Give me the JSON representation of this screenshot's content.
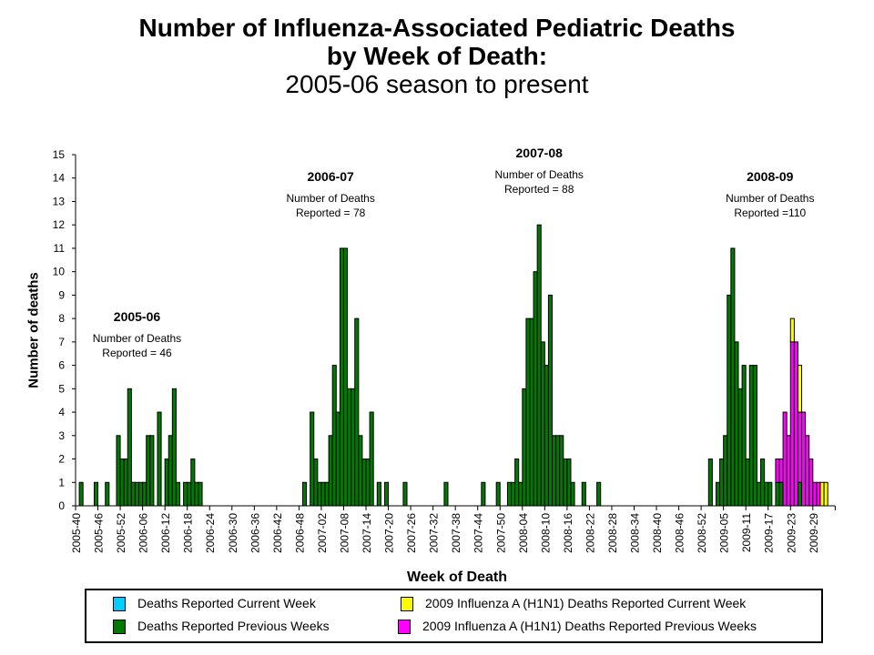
{
  "chart_data": {
    "type": "bar",
    "stacked": true,
    "title": [
      "Number of Influenza-Associated Pediatric Deaths",
      "by Week of Death:",
      "2005-06 season to present"
    ],
    "xlabel": "Week of Death",
    "ylabel": "Number of deaths",
    "ylim": [
      0,
      15
    ],
    "yticks": [
      0,
      1,
      2,
      3,
      4,
      5,
      6,
      7,
      8,
      9,
      10,
      11,
      12,
      13,
      14,
      15
    ],
    "grid": false,
    "x_start_week": "2005-40",
    "x_week_count": 204,
    "x_tick_every_weeks": 6,
    "xtick_labels": [
      "2005-40",
      "2005-46",
      "2005-52",
      "2006-06",
      "2006-12",
      "2006-18",
      "2006-24",
      "2006-30",
      "2006-36",
      "2006-42",
      "2006-48",
      "2007-02",
      "2007-08",
      "2007-14",
      "2007-20",
      "2007-26",
      "2007-32",
      "2007-38",
      "2007-44",
      "2007-50",
      "2008-04",
      "2008-10",
      "2008-16",
      "2008-22",
      "2008-28",
      "2008-34",
      "2008-40",
      "2008-46",
      "2008-52",
      "2009-05",
      "2009-11",
      "2009-17",
      "2009-23",
      "2009-29"
    ],
    "series": [
      {
        "name": "Deaths Reported Current Week",
        "color": "#00ccff",
        "values": []
      },
      {
        "name": "Deaths Reported Previous Weeks",
        "color": "#007a00",
        "values": [
          {
            "week": "2005-41",
            "value": 1
          },
          {
            "week": "2005-45",
            "value": 1
          },
          {
            "week": "2005-48",
            "value": 1
          },
          {
            "week": "2005-51",
            "value": 3
          },
          {
            "week": "2005-52",
            "value": 2
          },
          {
            "week": "2006-01",
            "value": 2
          },
          {
            "week": "2006-02",
            "value": 5
          },
          {
            "week": "2006-03",
            "value": 1
          },
          {
            "week": "2006-04",
            "value": 1
          },
          {
            "week": "2006-05",
            "value": 1
          },
          {
            "week": "2006-06",
            "value": 1
          },
          {
            "week": "2006-07",
            "value": 3
          },
          {
            "week": "2006-08",
            "value": 3
          },
          {
            "week": "2006-10",
            "value": 4
          },
          {
            "week": "2006-12",
            "value": 2
          },
          {
            "week": "2006-13",
            "value": 3
          },
          {
            "week": "2006-14",
            "value": 5
          },
          {
            "week": "2006-15",
            "value": 1
          },
          {
            "week": "2006-17",
            "value": 1
          },
          {
            "week": "2006-18",
            "value": 1
          },
          {
            "week": "2006-19",
            "value": 2
          },
          {
            "week": "2006-20",
            "value": 1
          },
          {
            "week": "2006-21",
            "value": 1
          },
          {
            "week": "2006-49",
            "value": 1
          },
          {
            "week": "2006-51",
            "value": 4
          },
          {
            "week": "2006-52",
            "value": 2
          },
          {
            "week": "2007-01",
            "value": 1
          },
          {
            "week": "2007-02",
            "value": 1
          },
          {
            "week": "2007-03",
            "value": 1
          },
          {
            "week": "2007-04",
            "value": 3
          },
          {
            "week": "2007-05",
            "value": 6
          },
          {
            "week": "2007-06",
            "value": 4
          },
          {
            "week": "2007-07",
            "value": 11
          },
          {
            "week": "2007-08",
            "value": 11
          },
          {
            "week": "2007-09",
            "value": 5
          },
          {
            "week": "2007-10",
            "value": 5
          },
          {
            "week": "2007-11",
            "value": 8
          },
          {
            "week": "2007-12",
            "value": 3
          },
          {
            "week": "2007-13",
            "value": 2
          },
          {
            "week": "2007-14",
            "value": 2
          },
          {
            "week": "2007-15",
            "value": 4
          },
          {
            "week": "2007-17",
            "value": 1
          },
          {
            "week": "2007-19",
            "value": 1
          },
          {
            "week": "2007-24",
            "value": 1
          },
          {
            "week": "2007-35",
            "value": 1
          },
          {
            "week": "2007-45",
            "value": 1
          },
          {
            "week": "2007-49",
            "value": 1
          },
          {
            "week": "2007-52",
            "value": 1
          },
          {
            "week": "2008-01",
            "value": 1
          },
          {
            "week": "2008-02",
            "value": 2
          },
          {
            "week": "2008-03",
            "value": 1
          },
          {
            "week": "2008-04",
            "value": 5
          },
          {
            "week": "2008-05",
            "value": 8
          },
          {
            "week": "2008-06",
            "value": 8
          },
          {
            "week": "2008-07",
            "value": 10
          },
          {
            "week": "2008-08",
            "value": 12
          },
          {
            "week": "2008-09",
            "value": 7
          },
          {
            "week": "2008-10",
            "value": 6
          },
          {
            "week": "2008-11",
            "value": 9
          },
          {
            "week": "2008-12",
            "value": 3
          },
          {
            "week": "2008-13",
            "value": 3
          },
          {
            "week": "2008-14",
            "value": 3
          },
          {
            "week": "2008-15",
            "value": 2
          },
          {
            "week": "2008-16",
            "value": 2
          },
          {
            "week": "2008-17",
            "value": 1
          },
          {
            "week": "2008-20",
            "value": 1
          },
          {
            "week": "2008-24",
            "value": 1
          },
          {
            "week": "2009-01",
            "value": 2
          },
          {
            "week": "2009-03",
            "value": 1
          },
          {
            "week": "2009-04",
            "value": 2
          },
          {
            "week": "2009-05",
            "value": 3
          },
          {
            "week": "2009-06",
            "value": 9
          },
          {
            "week": "2009-07",
            "value": 11
          },
          {
            "week": "2009-08",
            "value": 7
          },
          {
            "week": "2009-09",
            "value": 5
          },
          {
            "week": "2009-10",
            "value": 6
          },
          {
            "week": "2009-11",
            "value": 2
          },
          {
            "week": "2009-12",
            "value": 6
          },
          {
            "week": "2009-13",
            "value": 6
          },
          {
            "week": "2009-14",
            "value": 1
          },
          {
            "week": "2009-15",
            "value": 2
          },
          {
            "week": "2009-16",
            "value": 1
          },
          {
            "week": "2009-17",
            "value": 1
          },
          {
            "week": "2009-19",
            "value": 1
          },
          {
            "week": "2009-20",
            "value": 1
          },
          {
            "week": "2009-25",
            "value": 1
          }
        ]
      },
      {
        "name": "2009 Influenza A (H1N1) Deaths Reported Previous Weeks",
        "color": "#ff00ff",
        "values": [
          {
            "week": "2009-19",
            "value": 1
          },
          {
            "week": "2009-20",
            "value": 1
          },
          {
            "week": "2009-21",
            "value": 4
          },
          {
            "week": "2009-22",
            "value": 3
          },
          {
            "week": "2009-23",
            "value": 7
          },
          {
            "week": "2009-24",
            "value": 7
          },
          {
            "week": "2009-25",
            "value": 3
          },
          {
            "week": "2009-26",
            "value": 4
          },
          {
            "week": "2009-27",
            "value": 3
          },
          {
            "week": "2009-28",
            "value": 2
          },
          {
            "week": "2009-29",
            "value": 1
          },
          {
            "week": "2009-30",
            "value": 1
          }
        ]
      },
      {
        "name": "2009 Influenza A (H1N1) Deaths Reported Current Week",
        "color": "#ffff00",
        "values": [
          {
            "week": "2009-23",
            "value": 1
          },
          {
            "week": "2009-25",
            "value": 2
          },
          {
            "week": "2009-31",
            "value": 1
          },
          {
            "week": "2009-32",
            "value": 1
          }
        ]
      }
    ],
    "annotations": [
      {
        "season": "2005-06",
        "label": "Number of Deaths\nReported = 46",
        "anchor_week": "2006-04",
        "level": 8
      },
      {
        "season": "2006-07",
        "label": "Number of Deaths\nReported = 78",
        "anchor_week": "2007-04",
        "level": 14
      },
      {
        "season": "2007-08",
        "label": "Number of Deaths\nReported = 88",
        "anchor_week": "2008-08",
        "level": 15
      },
      {
        "season": "2008-09",
        "label": "Number of Deaths\nReported =110",
        "anchor_week": "2009-17",
        "level": 14
      }
    ],
    "legend": {
      "placement": "bottom",
      "items": [
        {
          "label": "Deaths Reported Current Week",
          "color": "#00ccff"
        },
        {
          "label": "2009 Influenza A (H1N1) Deaths Reported Current Week",
          "color": "#ffff00"
        },
        {
          "label": "Deaths Reported Previous Weeks",
          "color": "#007a00"
        },
        {
          "label": "2009 Influenza A (H1N1) Deaths Reported Previous Weeks",
          "color": "#ff00ff"
        }
      ]
    }
  }
}
